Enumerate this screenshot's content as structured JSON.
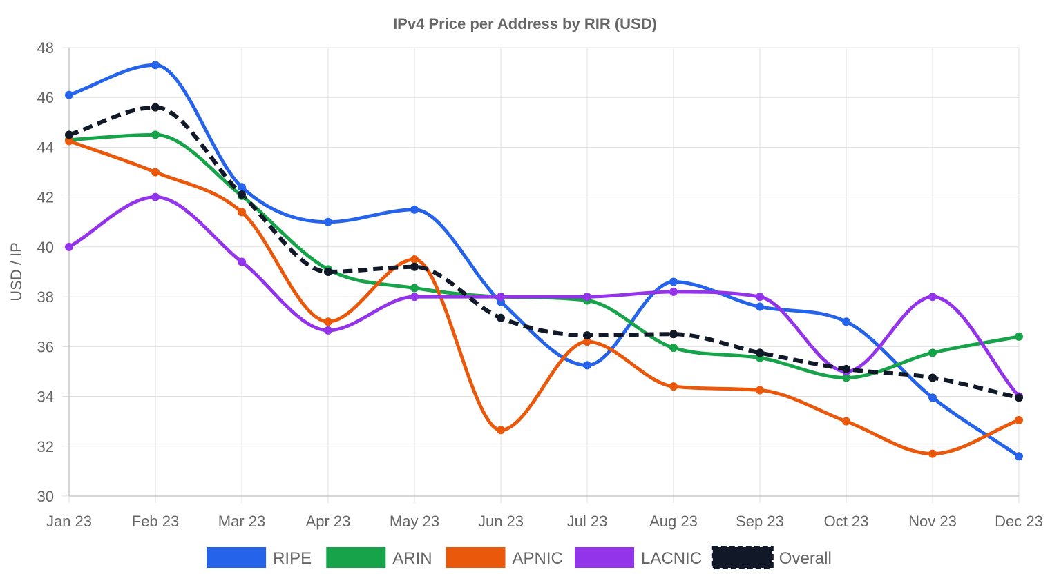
{
  "chart_data": {
    "type": "line",
    "title": "IPv4 Price per Address by RIR (USD)",
    "xlabel": "",
    "ylabel": "USD / IP",
    "ylim": [
      30,
      48
    ],
    "y_ticks": [
      30,
      32,
      34,
      36,
      38,
      40,
      42,
      44,
      46,
      48
    ],
    "grid": true,
    "legend_position": "bottom",
    "categories": [
      "Jan 23",
      "Feb 23",
      "Mar 23",
      "Apr 23",
      "May 23",
      "Jun 23",
      "Jul 23",
      "Aug 23",
      "Sep 23",
      "Oct 23",
      "Nov 23",
      "Dec 23"
    ],
    "series": [
      {
        "name": "RIPE",
        "color": "#2563eb",
        "dashed": false,
        "values": [
          46.1,
          47.3,
          42.4,
          41.0,
          41.5,
          37.8,
          35.25,
          38.6,
          37.6,
          37.0,
          33.95,
          31.6
        ]
      },
      {
        "name": "ARIN",
        "color": "#16a34a",
        "dashed": false,
        "values": [
          44.3,
          44.5,
          42.05,
          39.1,
          38.35,
          38.0,
          37.85,
          35.95,
          35.55,
          34.75,
          35.75,
          36.4
        ]
      },
      {
        "name": "APNIC",
        "color": "#ea580c",
        "dashed": false,
        "values": [
          44.25,
          43.0,
          41.4,
          37.0,
          39.5,
          32.65,
          36.2,
          34.4,
          34.25,
          33.0,
          31.7,
          33.05
        ]
      },
      {
        "name": "LACNIC",
        "color": "#9333ea",
        "dashed": false,
        "values": [
          40.0,
          42.0,
          39.4,
          36.65,
          38.0,
          38.0,
          38.0,
          38.2,
          38.0,
          35.0,
          38.0,
          34.0
        ]
      },
      {
        "name": "Overall",
        "color": "#111827",
        "dashed": true,
        "values": [
          44.5,
          45.6,
          42.1,
          39.0,
          39.2,
          37.15,
          36.45,
          36.5,
          35.75,
          35.1,
          34.75,
          33.95
        ]
      }
    ]
  }
}
